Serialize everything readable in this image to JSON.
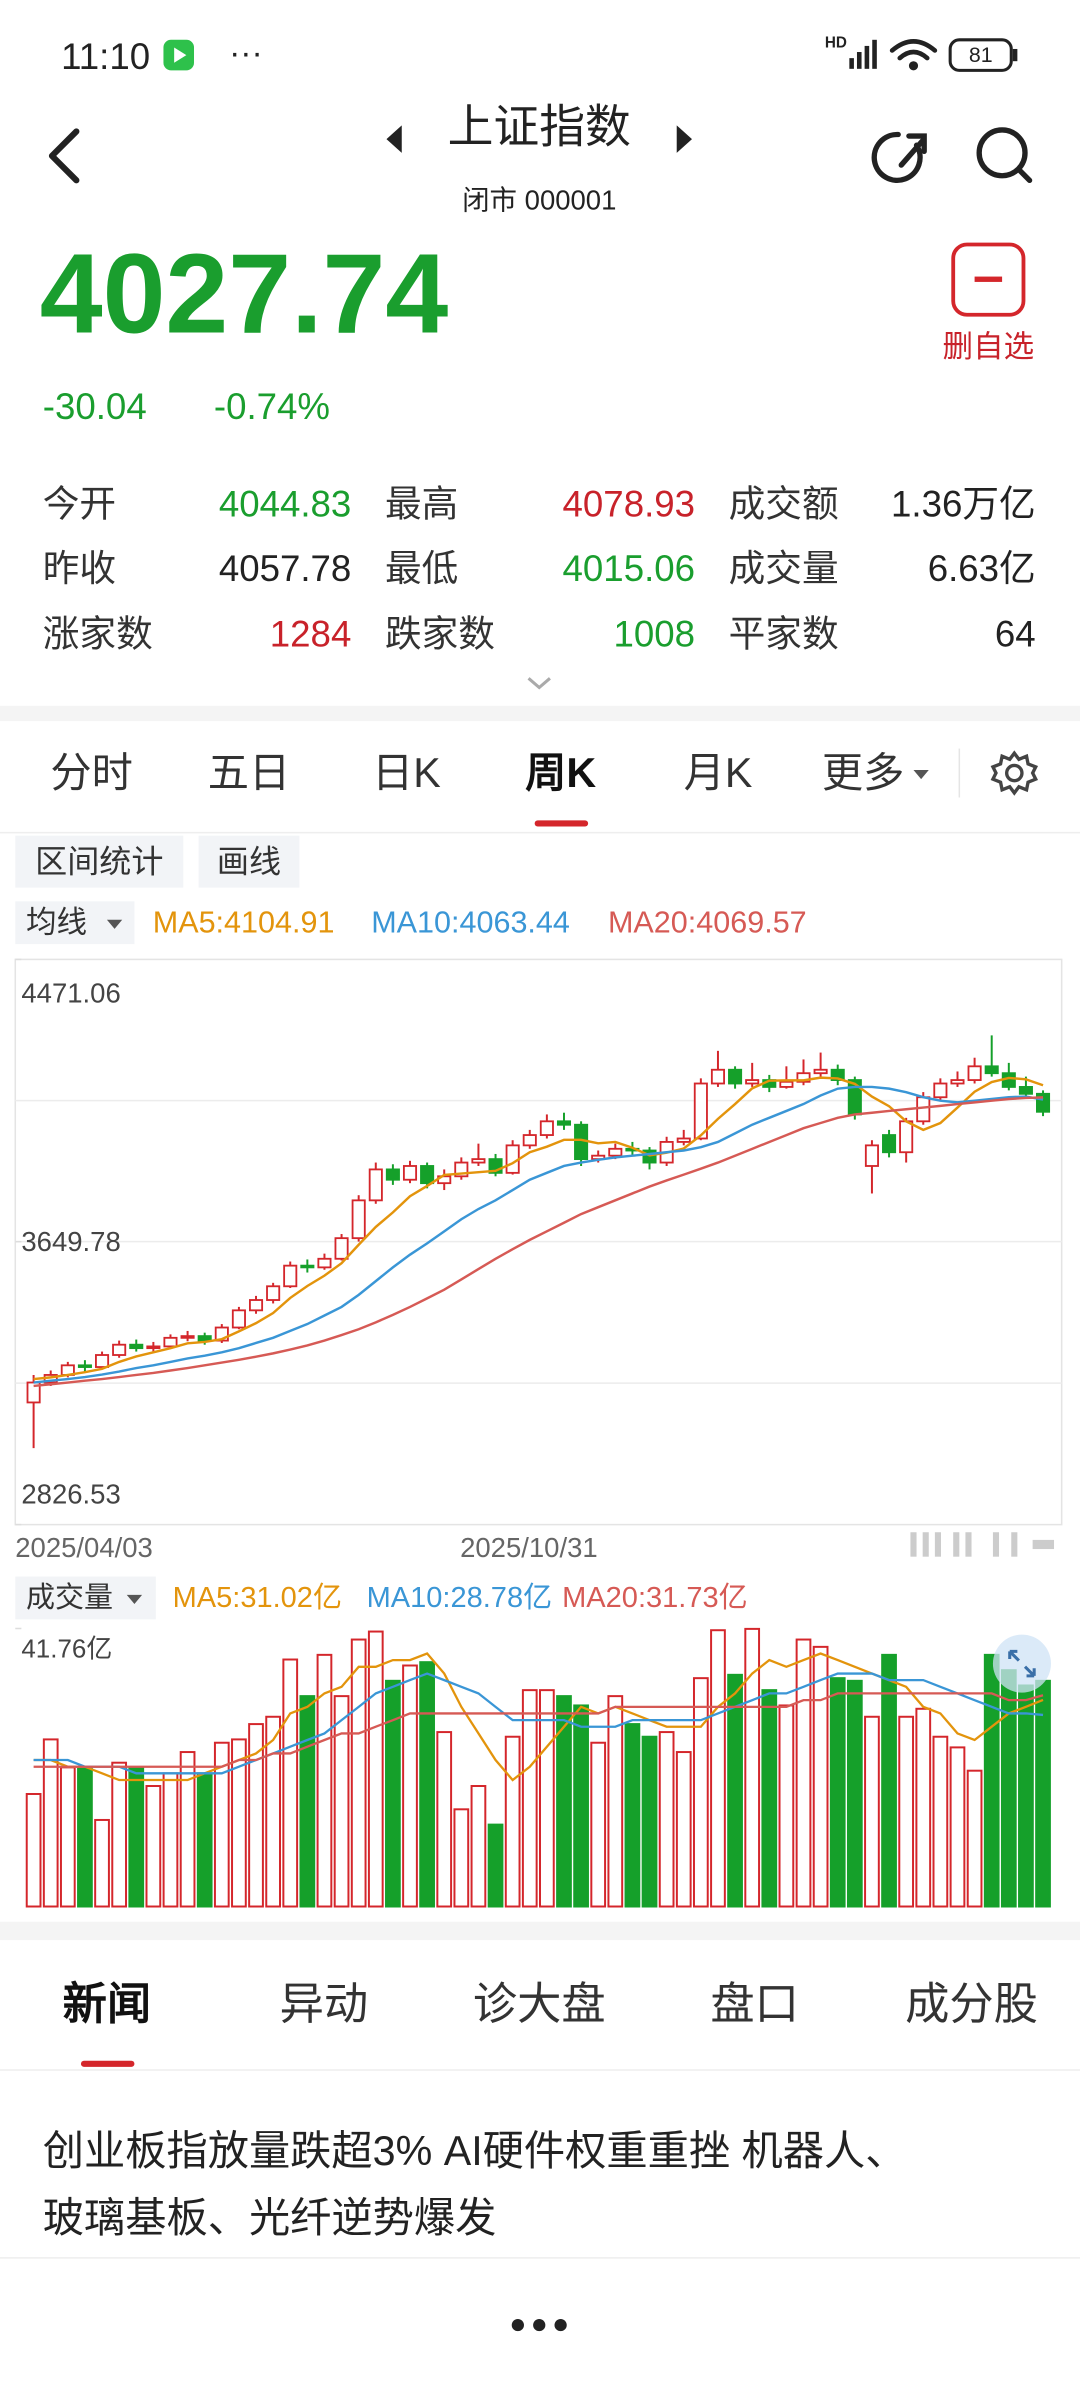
{
  "status_bar": {
    "time": "11:10",
    "network": "HD",
    "battery": "81"
  },
  "header": {
    "title": "上证指数",
    "subtitle": "闭市 000001"
  },
  "quote": {
    "price": "4027.74",
    "change": "-30.04",
    "change_pct": "-0.74%",
    "watchlist_button": "删自选"
  },
  "stats": [
    {
      "label": "今开",
      "value": "4044.83",
      "color": "#1a9e2e"
    },
    {
      "label": "最高",
      "value": "4078.93",
      "color": "#c8222a"
    },
    {
      "label": "成交额",
      "value": "1.36万亿",
      "color": "#222222"
    },
    {
      "label": "昨收",
      "value": "4057.78",
      "color": "#222222"
    },
    {
      "label": "最低",
      "value": "4015.06",
      "color": "#1a9e2e"
    },
    {
      "label": "成交量",
      "value": "6.63亿",
      "color": "#222222"
    },
    {
      "label": "涨家数",
      "value": "1284",
      "color": "#c8222a"
    },
    {
      "label": "跌家数",
      "value": "1008",
      "color": "#1a9e2e"
    },
    {
      "label": "平家数",
      "value": "64",
      "color": "#222222"
    }
  ],
  "period_tabs": [
    "分时",
    "五日",
    "日K",
    "周K",
    "月K",
    "更多"
  ],
  "tools": [
    "区间统计",
    "画线"
  ],
  "indicator_selectors": [
    "均线",
    "成交量"
  ],
  "chart_data": [
    {
      "type": "candlestick",
      "categories": [
        "2025/04/03",
        null,
        null,
        null,
        null,
        null,
        null,
        null,
        null,
        null,
        null,
        null,
        null,
        null,
        null,
        null,
        null,
        null,
        null,
        null,
        null,
        null,
        null,
        null,
        null,
        null,
        "2025/10/31",
        null,
        null,
        null,
        null,
        null,
        null,
        null,
        null,
        null,
        null,
        null,
        null,
        null,
        null,
        null,
        null,
        null,
        null,
        null,
        null,
        null,
        null,
        null,
        null,
        null,
        null,
        null,
        null,
        null,
        null,
        null,
        null,
        null
      ],
      "open": [
        3182,
        3240,
        3262,
        3290,
        3285,
        3320,
        3350,
        3340,
        3345,
        3370,
        3375,
        3362,
        3400,
        3450,
        3480,
        3520,
        3580,
        3575,
        3600,
        3660,
        3770,
        3860,
        3830,
        3870,
        3820,
        3840,
        3880,
        3890,
        3850,
        3930,
        3960,
        4000,
        3990,
        3890,
        3900,
        3920,
        3915,
        3880,
        3940,
        3950,
        4110,
        4150,
        4110,
        4120,
        4100,
        4115,
        4140,
        4150,
        4120,
        3870,
        3960,
        3910,
        4000,
        4070,
        4110,
        4120,
        4160,
        4140,
        4100,
        4080
      ],
      "high": [
        3262,
        3275,
        3300,
        3305,
        3330,
        3362,
        3365,
        3358,
        3380,
        3390,
        3385,
        3410,
        3460,
        3492,
        3530,
        3592,
        3598,
        3615,
        3672,
        3785,
        3880,
        3875,
        3885,
        3880,
        3860,
        3895,
        3935,
        3905,
        3945,
        3975,
        4020,
        4025,
        4000,
        3915,
        3935,
        3940,
        3925,
        3955,
        3975,
        4125,
        4205,
        4160,
        4170,
        4135,
        4160,
        4180,
        4200,
        4165,
        4130,
        3945,
        3975,
        4010,
        4085,
        4125,
        4145,
        4185,
        4250,
        4170,
        4130,
        4090
      ],
      "low": [
        3049,
        3230,
        3255,
        3270,
        3280,
        3312,
        3330,
        3328,
        3340,
        3360,
        3350,
        3355,
        3395,
        3440,
        3470,
        3515,
        3560,
        3568,
        3595,
        3650,
        3760,
        3815,
        3820,
        3805,
        3800,
        3830,
        3870,
        3840,
        3845,
        3920,
        3950,
        3975,
        3870,
        3880,
        3890,
        3900,
        3860,
        3870,
        3930,
        3945,
        4100,
        4095,
        4100,
        4085,
        4095,
        4105,
        4130,
        4105,
        4005,
        3790,
        3895,
        3880,
        3990,
        4060,
        4100,
        4110,
        4130,
        4090,
        4065,
        4015.06
      ],
      "close": [
        3240,
        3262,
        3290,
        3285,
        3320,
        3350,
        3340,
        3345,
        3370,
        3375,
        3362,
        3400,
        3450,
        3480,
        3520,
        3580,
        3575,
        3600,
        3660,
        3770,
        3860,
        3830,
        3870,
        3820,
        3840,
        3880,
        3890,
        3850,
        3930,
        3960,
        4000,
        3990,
        3890,
        3900,
        3920,
        3915,
        3880,
        3940,
        3950,
        4110,
        4150,
        4110,
        4120,
        4100,
        4115,
        4140,
        4150,
        4120,
        4020,
        3930,
        3910,
        4000,
        4070,
        4110,
        4120,
        4160,
        4140,
        4100,
        4080,
        4027.74
      ],
      "up_color": "#d4262b",
      "down_color": "#15a02a",
      "series": [
        {
          "name": "MA5:4104.91",
          "color": "#e3940c",
          "values": [
            3250,
            3255,
            3262,
            3270,
            3280,
            3300,
            3316,
            3328,
            3340,
            3354,
            3358,
            3366,
            3389,
            3413,
            3442,
            3486,
            3521,
            3551,
            3587,
            3641,
            3693,
            3735,
            3782,
            3812,
            3844,
            3848,
            3852,
            3856,
            3878,
            3910,
            3926,
            3946,
            3946,
            3936,
            3940,
            3923,
            3901,
            3909,
            3921,
            3959,
            4007,
            4050,
            4096,
            4118,
            4119,
            4119,
            4127,
            4125,
            4109,
            4072,
            4044,
            4000,
            3975,
            3995,
            4040,
            4086,
            4114,
            4126,
            4122,
            4104.91
          ]
        },
        {
          "name": "MA10:4063.44",
          "color": "#3a96d6",
          "values": [
            3240,
            3245,
            3250,
            3256,
            3263,
            3272,
            3282,
            3290,
            3300,
            3310,
            3318,
            3328,
            3340,
            3355,
            3370,
            3390,
            3410,
            3435,
            3460,
            3495,
            3535,
            3575,
            3612,
            3645,
            3680,
            3715,
            3745,
            3770,
            3800,
            3830,
            3850,
            3870,
            3880,
            3888,
            3895,
            3900,
            3905,
            3910,
            3915,
            3925,
            3940,
            3965,
            3990,
            4010,
            4030,
            4050,
            4075,
            4095,
            4100,
            4100,
            4095,
            4085,
            4070,
            4060,
            4055,
            4060,
            4065,
            4070,
            4072,
            4063.44
          ]
        },
        {
          "name": "MA20:4069.57",
          "color": "#d65a55",
          "values": [
            3230,
            3235,
            3240,
            3245,
            3250,
            3256,
            3262,
            3268,
            3275,
            3282,
            3290,
            3298,
            3306,
            3315,
            3325,
            3336,
            3348,
            3362,
            3378,
            3395,
            3415,
            3437,
            3460,
            3485,
            3510,
            3540,
            3570,
            3600,
            3628,
            3655,
            3680,
            3705,
            3730,
            3750,
            3770,
            3790,
            3810,
            3828,
            3845,
            3862,
            3880,
            3900,
            3920,
            3940,
            3960,
            3980,
            3995,
            4010,
            4020,
            4025,
            4030,
            4035,
            4040,
            4045,
            4050,
            4055,
            4060,
            4065,
            4068,
            4069.57
          ]
        }
      ],
      "ylim": [
        2826.53,
        4471.06
      ],
      "yticks": [
        4471.06,
        3649.78,
        2826.53
      ],
      "grid_lines": [
        4060.15,
        3649.78,
        3238.16
      ]
    },
    {
      "type": "bar",
      "values": [
        16.9,
        25.1,
        20.9,
        20.9,
        13.0,
        21.6,
        20.9,
        18.1,
        20.0,
        23.2,
        20.0,
        24.6,
        25.1,
        27.4,
        28.5,
        37.1,
        31.6,
        37.8,
        31.6,
        40.1,
        41.3,
        33.9,
        36.2,
        36.7,
        26.2,
        14.6,
        18.1,
        12.3,
        25.5,
        32.5,
        32.5,
        31.6,
        30.2,
        24.6,
        31.6,
        27.4,
        25.5,
        26.2,
        23.2,
        34.3,
        41.5,
        34.8,
        41.7,
        32.5,
        30.2,
        40.1,
        39.0,
        34.3,
        33.9,
        28.5,
        37.8,
        28.5,
        29.7,
        25.5,
        23.9,
        20.4,
        37.8,
        35.5,
        33.2,
        33.9
      ],
      "series": [
        {
          "name": "MA5:31.02亿",
          "color": "#e3940c",
          "values": [
            22,
            22,
            21,
            21,
            20,
            19,
            19,
            19,
            19,
            19,
            20,
            21,
            22,
            23,
            25,
            29,
            30,
            32,
            33,
            36,
            36,
            37,
            37,
            38,
            35,
            30,
            26,
            22,
            19,
            21,
            24,
            27,
            30,
            29,
            30,
            29,
            28,
            27,
            27,
            27,
            30,
            32,
            35,
            37,
            36,
            37,
            38,
            37,
            36,
            35,
            34,
            33,
            30,
            29,
            26,
            25,
            27,
            29,
            30,
            31.02
          ]
        },
        {
          "name": "MA10:28.78亿",
          "color": "#3a96d6",
          "values": [
            22,
            22,
            22,
            21,
            21,
            21,
            20,
            20,
            20,
            20,
            20,
            20,
            21,
            22,
            23,
            24,
            25,
            26,
            28,
            30,
            32,
            33,
            34,
            35,
            34,
            33,
            32,
            30,
            28,
            28,
            28,
            28,
            27,
            27,
            27,
            28,
            28,
            28,
            28,
            28,
            29,
            30,
            31,
            32,
            32,
            33,
            34,
            35,
            35,
            35,
            34,
            34,
            34,
            33,
            32,
            31,
            30,
            29,
            29,
            28.78
          ]
        },
        {
          "name": "MA20:31.73亿",
          "color": "#d65a55",
          "values": [
            21,
            21,
            21,
            21,
            21,
            21,
            21,
            21,
            21,
            21,
            21,
            21,
            22,
            22,
            23,
            23,
            24,
            25,
            26,
            26,
            27,
            28,
            29,
            29,
            29,
            29,
            29,
            29,
            29,
            29,
            29,
            29,
            29,
            29,
            30,
            30,
            30,
            30,
            30,
            30,
            30,
            30,
            30,
            30,
            30,
            31,
            31,
            32,
            32,
            32,
            32,
            32,
            32,
            32,
            32,
            32,
            32,
            31,
            31,
            31.73
          ]
        }
      ],
      "ylim": [
        0,
        41.76
      ],
      "yticks": [
        {
          "value": 41.76,
          "label": "41.76亿"
        }
      ]
    }
  ],
  "news_tabs": [
    "新闻",
    "异动",
    "诊大盘",
    "盘口",
    "成分股"
  ],
  "news": [
    {
      "headline_lines": [
        "创业板指放量跌超3% AI硬件权重重挫 机器人、",
        "玻璃基板、光纤逆势爆发"
      ]
    }
  ]
}
